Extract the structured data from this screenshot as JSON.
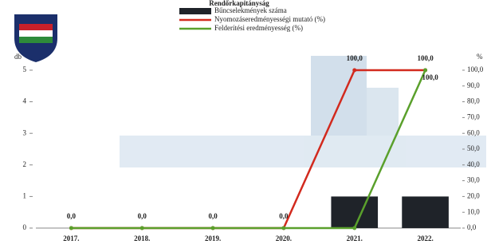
{
  "chart_data": {
    "type": "bar",
    "title": "Rendőrkapitányság",
    "categories": [
      "2017.",
      "2018.",
      "2019.",
      "2020.",
      "2021.",
      "2022."
    ],
    "y_label": "db",
    "y2_label": "%",
    "series": [
      {
        "name": "Bűncselekmények száma",
        "type": "bar",
        "color": "#1f2329",
        "values": [
          0,
          0,
          0,
          0,
          1,
          1
        ]
      },
      {
        "name": "Nyomozáseredményességi mutató (%)",
        "type": "line",
        "axis": "y2",
        "color": "#d22a1e",
        "values": [
          0,
          0,
          0,
          0,
          100,
          100
        ],
        "value_labels": [
          "0,0",
          "0,0",
          "0,0",
          "0,0",
          "100,0",
          "100,0"
        ]
      },
      {
        "name": "Felderítési eredményesség (%)",
        "type": "line",
        "axis": "y2",
        "color": "#5aa02c",
        "values": [
          0,
          0,
          0,
          0,
          0,
          100
        ],
        "value_labels": [
          null,
          null,
          null,
          null,
          null,
          "100,0"
        ]
      }
    ],
    "ylim": [
      0,
      5
    ],
    "yticks": [
      0,
      1,
      2,
      3,
      4,
      5
    ],
    "y2lim": [
      0,
      100
    ],
    "y2ticks": [
      {
        "value": 0,
        "label": "0,0"
      },
      {
        "value": 10,
        "label": "10,0"
      },
      {
        "value": 20,
        "label": "20,0"
      },
      {
        "value": 30,
        "label": "30,0"
      },
      {
        "value": 40,
        "label": "40,0"
      },
      {
        "value": 50,
        "label": "50,0"
      },
      {
        "value": 60,
        "label": "60,0"
      },
      {
        "value": 70,
        "label": "70,0"
      },
      {
        "value": 80,
        "label": "80,0"
      },
      {
        "value": 90,
        "label": "90,0"
      },
      {
        "value": 100,
        "label": "100,0"
      }
    ]
  }
}
